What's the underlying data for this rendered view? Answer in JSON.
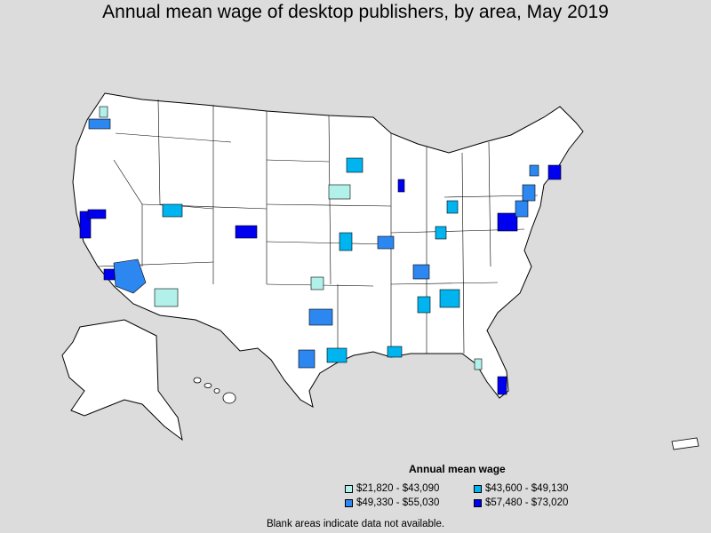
{
  "title": "Annual mean wage of desktop publishers, by area, May 2019",
  "legend": {
    "title": "Annual mean wage",
    "items": [
      {
        "label": "$21,820 - $43,090",
        "color": "#b2f0ea"
      },
      {
        "label": "$43,600 - $49,130",
        "color": "#00b4f0"
      },
      {
        "label": "$49,330 - $55,030",
        "color": "#2d87f0"
      },
      {
        "label": "$57,480 - $73,020",
        "color": "#0000f0"
      }
    ]
  },
  "note": "Blank areas indicate data not available.",
  "colors": {
    "background": "#dcdcdc",
    "land": "#ffffff",
    "border": "#000000"
  }
}
